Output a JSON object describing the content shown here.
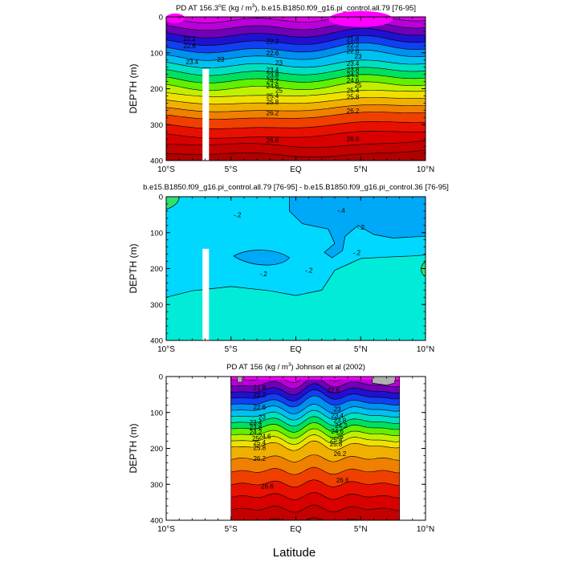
{
  "chart_data": [
    {
      "type": "contour",
      "title": "PD AT 156.3°E (kg / m³), b.e15.B1850.f09_g16.pi_control.all.79 [76-95]",
      "title_parts": {
        "pre": "PD AT 156.3",
        "deg": "o",
        "post": "E (kg / m",
        "sup": "3",
        "end": "), b.e15.B1850.f09_g16.pi_control.all.79 [76-95]"
      },
      "xlabel": "",
      "ylabel": "DEPTH (m)",
      "xlim": [
        -10,
        10
      ],
      "ylim": [
        0,
        400
      ],
      "y_inverted": true,
      "xticks": [
        {
          "value": -10,
          "label": "10°S"
        },
        {
          "value": -5,
          "label": "5°S"
        },
        {
          "value": 0,
          "label": "EQ"
        },
        {
          "value": 5,
          "label": "5°N"
        },
        {
          "value": 10,
          "label": "10°N"
        }
      ],
      "yticks": [
        0,
        100,
        200,
        300,
        400
      ],
      "data_extent_x": [
        -10,
        10
      ],
      "gap": {
        "x": [
          -7.2,
          -6.7
        ],
        "depth_from": 145
      },
      "contour_levels": [
        21.8,
        22.2,
        22.6,
        23.0,
        23.4,
        23.8,
        24.2,
        24.6,
        25.0,
        25.4,
        25.8,
        26.2,
        26.6
      ],
      "contour_labels": [
        {
          "x": -8.2,
          "y": 60,
          "text": "22.2"
        },
        {
          "x": -8.2,
          "y": 80,
          "text": "22.6"
        },
        {
          "x": -8.0,
          "y": 125,
          "text": "23.4"
        },
        {
          "x": -5.8,
          "y": 118,
          "text": "23"
        },
        {
          "x": -1.8,
          "y": 68,
          "text": "22.2"
        },
        {
          "x": -1.8,
          "y": 100,
          "text": "22.6"
        },
        {
          "x": -1.3,
          "y": 127,
          "text": "23"
        },
        {
          "x": -1.8,
          "y": 147,
          "text": "23.4"
        },
        {
          "x": -1.8,
          "y": 162,
          "text": "23.8"
        },
        {
          "x": -1.8,
          "y": 178,
          "text": "24.2"
        },
        {
          "x": -1.8,
          "y": 192,
          "text": "24.6"
        },
        {
          "x": -1.3,
          "y": 205,
          "text": "25"
        },
        {
          "x": -1.8,
          "y": 220,
          "text": "25.4"
        },
        {
          "x": -1.8,
          "y": 237,
          "text": "25.8"
        },
        {
          "x": -1.8,
          "y": 267,
          "text": "26.2"
        },
        {
          "x": -1.8,
          "y": 343,
          "text": "26.6"
        },
        {
          "x": 4.4,
          "y": 62,
          "text": "21.8"
        },
        {
          "x": 4.4,
          "y": 78,
          "text": "22.2"
        },
        {
          "x": 4.4,
          "y": 95,
          "text": "22.6"
        },
        {
          "x": 4.8,
          "y": 110,
          "text": "23"
        },
        {
          "x": 4.4,
          "y": 130,
          "text": "23.4"
        },
        {
          "x": 4.4,
          "y": 146,
          "text": "23.8"
        },
        {
          "x": 4.4,
          "y": 161,
          "text": "24.2"
        },
        {
          "x": 4.4,
          "y": 176,
          "text": "24.6"
        },
        {
          "x": 4.8,
          "y": 190,
          "text": "25"
        },
        {
          "x": 4.4,
          "y": 205,
          "text": "25.4"
        },
        {
          "x": 4.4,
          "y": 222,
          "text": "25.8"
        },
        {
          "x": 4.4,
          "y": 262,
          "text": "26.2"
        },
        {
          "x": 4.4,
          "y": 340,
          "text": "26.6"
        }
      ]
    },
    {
      "type": "contour",
      "title": "b.e15.B1850.f09_g16.pi_control.all.79 [76-95] - b.e15.B1850.f09_g16.pi_control.36 [76-95]",
      "xlabel": "",
      "ylabel": "DEPTH (m)",
      "xlim": [
        -10,
        10
      ],
      "ylim": [
        0,
        400
      ],
      "y_inverted": true,
      "xticks": [
        {
          "value": -10,
          "label": "10°S"
        },
        {
          "value": -5,
          "label": "5°S"
        },
        {
          "value": 0,
          "label": "EQ"
        },
        {
          "value": 5,
          "label": "5°N"
        },
        {
          "value": 10,
          "label": "10°N"
        }
      ],
      "yticks": [
        0,
        100,
        200,
        300,
        400
      ],
      "data_extent_x": [
        -10,
        10
      ],
      "gap": {
        "x": [
          -7.2,
          -6.7
        ],
        "depth_from": 145
      },
      "contour_levels": [
        -0.4,
        -0.2,
        0.0
      ],
      "contour_labels": [
        {
          "x": -4.5,
          "y": 50,
          "text": "-.2"
        },
        {
          "x": -2.5,
          "y": 215,
          "text": "-.2"
        },
        {
          "x": 1.0,
          "y": 205,
          "text": "-.2"
        },
        {
          "x": 5.0,
          "y": 85,
          "text": "-.2"
        },
        {
          "x": 4.7,
          "y": 155,
          "text": "-.2"
        },
        {
          "x": 3.5,
          "y": 38,
          "text": "-.4"
        }
      ]
    },
    {
      "type": "contour",
      "title": "PD AT 156 (kg / m³) Johnson et al (2002)",
      "title_parts": {
        "pre": "PD AT 156 (kg / m",
        "sup": "3",
        "end": ") Johnson et al (2002)"
      },
      "xlabel": "Latitude",
      "ylabel": "DEPTH (m)",
      "xlim": [
        -10,
        10
      ],
      "ylim": [
        0,
        400
      ],
      "y_inverted": true,
      "xticks": [
        {
          "value": -10,
          "label": "10°S"
        },
        {
          "value": -5,
          "label": "5°S"
        },
        {
          "value": 0,
          "label": "EQ"
        },
        {
          "value": 5,
          "label": "5°N"
        },
        {
          "value": 10,
          "label": "10°N"
        }
      ],
      "yticks": [
        0,
        100,
        200,
        300,
        400
      ],
      "data_extent_x": [
        -5,
        8
      ],
      "contour_levels": [
        21.8,
        22.2,
        22.6,
        23.0,
        23.4,
        23.8,
        24.2,
        24.6,
        25.0,
        25.4,
        25.8,
        26.2,
        26.6
      ],
      "contour_labels": [
        {
          "x": -2.8,
          "y": 30,
          "text": "21.8"
        },
        {
          "x": -2.8,
          "y": 50,
          "text": "22.2"
        },
        {
          "x": -2.8,
          "y": 85,
          "text": "22.6"
        },
        {
          "x": -2.6,
          "y": 113,
          "text": "23"
        },
        {
          "x": -3.1,
          "y": 127,
          "text": "23.4"
        },
        {
          "x": -3.1,
          "y": 141,
          "text": "23.8"
        },
        {
          "x": -3.1,
          "y": 154,
          "text": "24.2"
        },
        {
          "x": -2.4,
          "y": 166,
          "text": "24.6"
        },
        {
          "x": -3.1,
          "y": 172,
          "text": "25"
        },
        {
          "x": -2.8,
          "y": 183,
          "text": "25.4"
        },
        {
          "x": -2.8,
          "y": 198,
          "text": "25.8"
        },
        {
          "x": -2.8,
          "y": 228,
          "text": "26.2"
        },
        {
          "x": -2.2,
          "y": 305,
          "text": "26.6"
        },
        {
          "x": 2.9,
          "y": 38,
          "text": "22.6"
        },
        {
          "x": 3.2,
          "y": 90,
          "text": "23"
        },
        {
          "x": 3.2,
          "y": 108,
          "text": "23.4"
        },
        {
          "x": 3.4,
          "y": 122,
          "text": "23.8"
        },
        {
          "x": 3.5,
          "y": 136,
          "text": "24.2"
        },
        {
          "x": 3.2,
          "y": 152,
          "text": "24.6"
        },
        {
          "x": 3.4,
          "y": 166,
          "text": "25"
        },
        {
          "x": 3.1,
          "y": 175,
          "text": "25.4"
        },
        {
          "x": 3.1,
          "y": 188,
          "text": "25.8"
        },
        {
          "x": 3.4,
          "y": 215,
          "text": "26.2"
        },
        {
          "x": 3.6,
          "y": 288,
          "text": "26.6"
        }
      ]
    }
  ],
  "figure": {
    "xlabel": "Latitude"
  }
}
